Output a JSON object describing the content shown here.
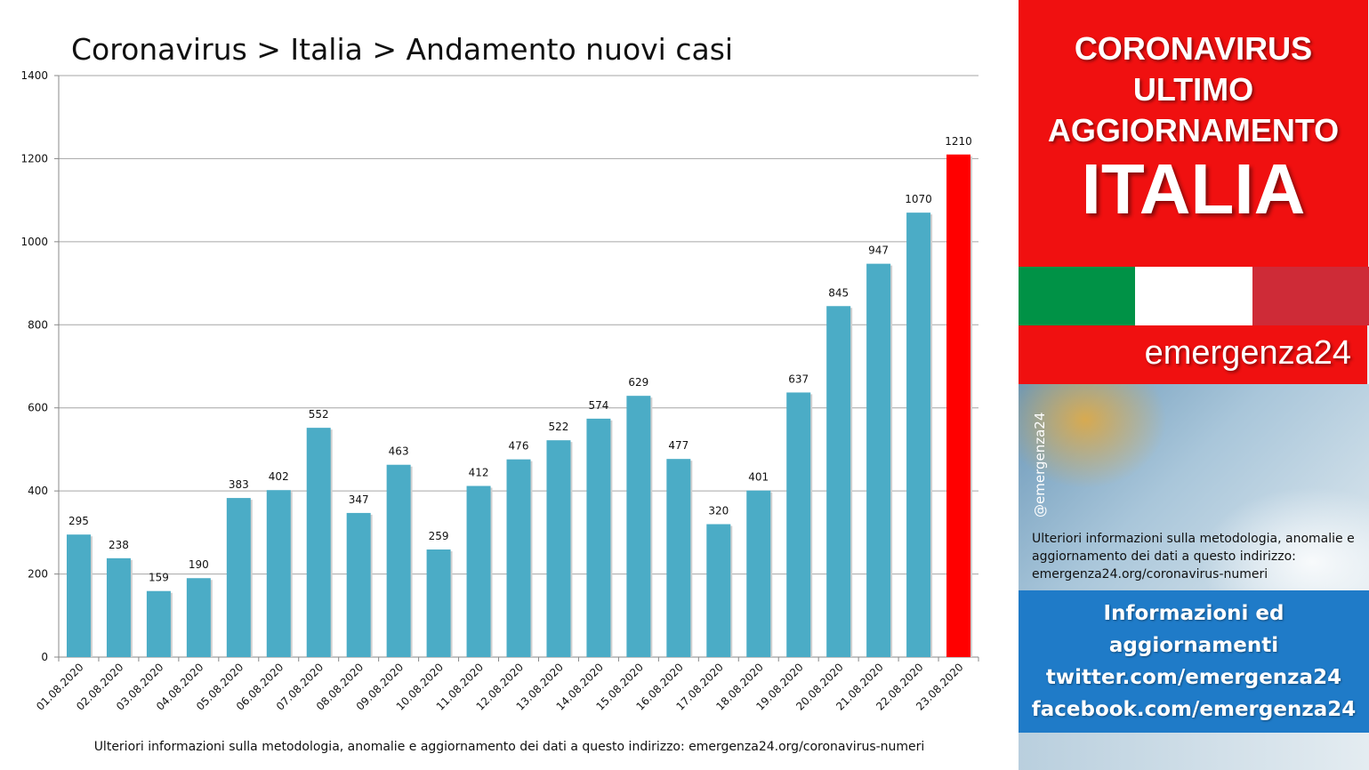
{
  "chart_data": {
    "type": "bar",
    "title": "Coronavirus > Italia > Andamento nuovi casi",
    "categories": [
      "01.08.2020",
      "02.08.2020",
      "03.08.2020",
      "04.08.2020",
      "05.08.2020",
      "06.08.2020",
      "07.08.2020",
      "08.08.2020",
      "09.08.2020",
      "10.08.2020",
      "11.08.2020",
      "12.08.2020",
      "13.08.2020",
      "14.08.2020",
      "15.08.2020",
      "16.08.2020",
      "17.08.2020",
      "18.08.2020",
      "19.08.2020",
      "20.08.2020",
      "21.08.2020",
      "22.08.2020",
      "23.08.2020"
    ],
    "values": [
      295,
      238,
      159,
      190,
      383,
      402,
      552,
      347,
      463,
      259,
      412,
      476,
      522,
      574,
      629,
      477,
      320,
      401,
      637,
      845,
      947,
      1070,
      1210
    ],
    "ylim": [
      0,
      1400
    ],
    "yticks": [
      0,
      200,
      400,
      600,
      800,
      1000,
      1200,
      1400
    ],
    "grid": true,
    "bar_color": "#4bacc6",
    "highlight_color": "#ff0000",
    "highlight_index": 22
  },
  "footer_note": "Ulteriori informazioni sulla metodologia, anomalie e aggiornamento dei dati a questo indirizzo: emergenza24.org/coronavirus-numeri",
  "panel": {
    "headline_lines": [
      "CORONAVIRUS",
      "ULTIMO",
      "AGGIORNAMENTO"
    ],
    "country": "ITALIA",
    "flag_colors": [
      "#009246",
      "#ffffff",
      "#ce2b37"
    ],
    "brand": "emergenza24",
    "handle": "@emergenza24",
    "note": "Ulteriori informazioni sulla metodologia, anomalie e aggiornamento dei dati a questo indirizzo: emergenza24.org/coronavirus-numeri",
    "info_lines": [
      "Informazioni ed",
      "aggiornamenti",
      "twitter.com/emergenza24",
      "facebook.com/emergenza24"
    ]
  }
}
